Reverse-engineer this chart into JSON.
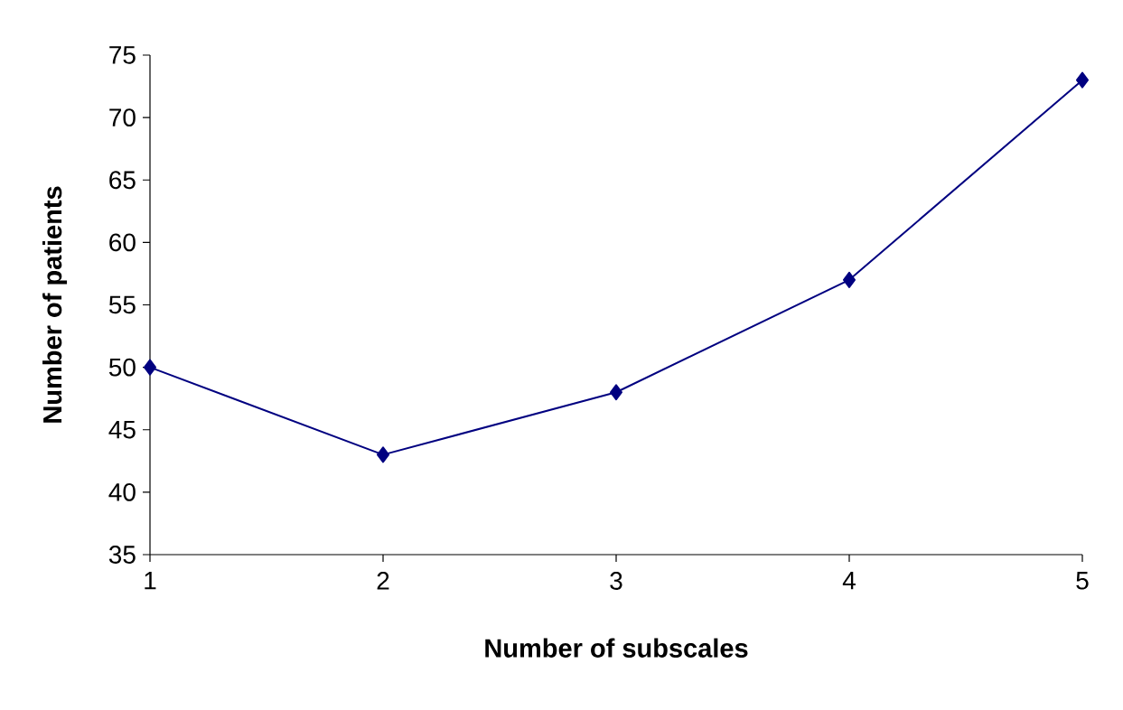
{
  "chart_data": {
    "type": "line",
    "xlabel": "Number of subscales",
    "ylabel": "Number of patients",
    "x": [
      1,
      2,
      3,
      4,
      5
    ],
    "series": [
      {
        "color": "#000080",
        "values": [
          50,
          43,
          48,
          57,
          73
        ]
      }
    ],
    "xlim": [
      1,
      5
    ],
    "xticks": [
      1,
      2,
      3,
      4,
      5
    ],
    "ylim": [
      35,
      75
    ],
    "yticks": [
      35,
      40,
      45,
      50,
      55,
      60,
      65,
      70,
      75
    ],
    "marker": "diamond",
    "line_style": "solid"
  }
}
